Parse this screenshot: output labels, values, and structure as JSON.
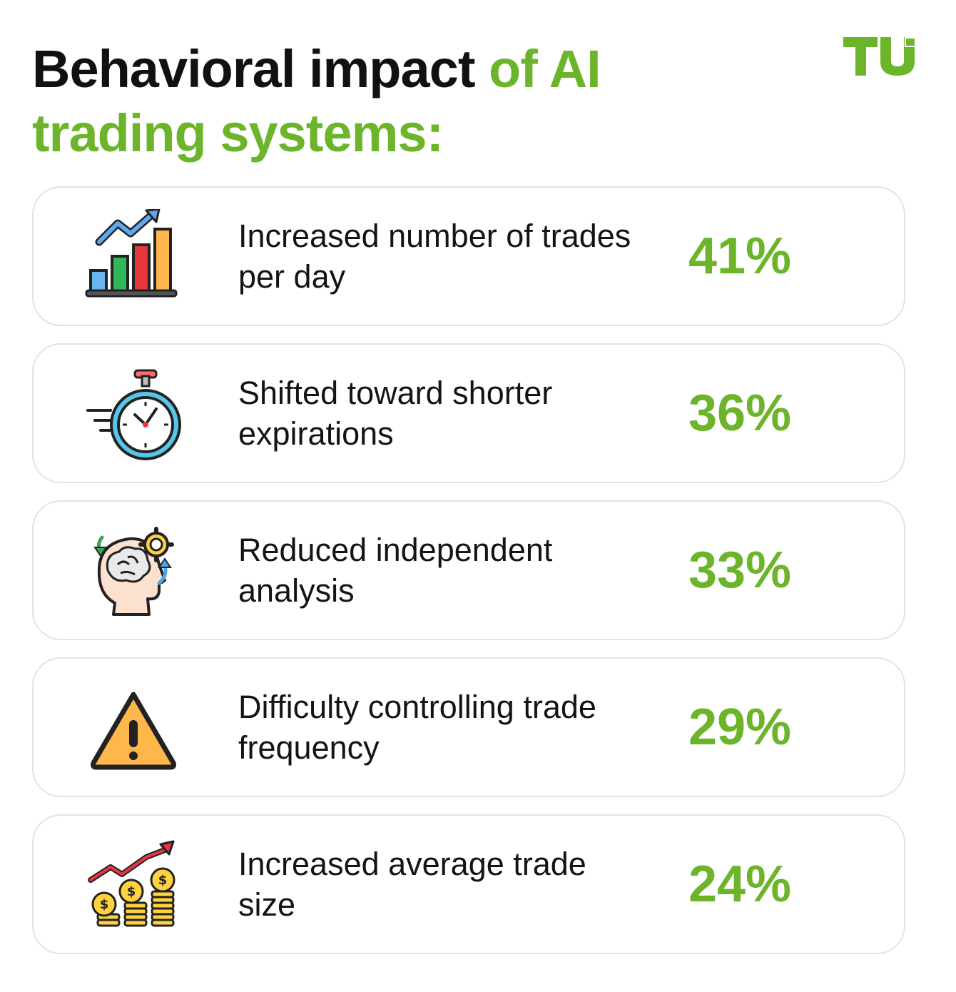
{
  "header": {
    "title_black": "Behavioral impact ",
    "title_green": "of AI trading systems:",
    "logo_text": "TU"
  },
  "colors": {
    "accent": "#6cb52b",
    "text": "#111111",
    "card_border": "#e3e3e3"
  },
  "items": [
    {
      "icon": "bar-chart-growth-icon",
      "label": "Increased number of trades per day",
      "value": "41%"
    },
    {
      "icon": "stopwatch-icon",
      "label": "Shifted toward shorter expirations",
      "value": "36%"
    },
    {
      "icon": "brain-gear-head-icon",
      "label": "Reduced independent analysis",
      "value": "33%"
    },
    {
      "icon": "warning-icon",
      "label": "Difficulty controlling trade frequency",
      "value": "29%"
    },
    {
      "icon": "coins-growth-icon",
      "label": "Increased average trade size",
      "value": "24%"
    }
  ]
}
